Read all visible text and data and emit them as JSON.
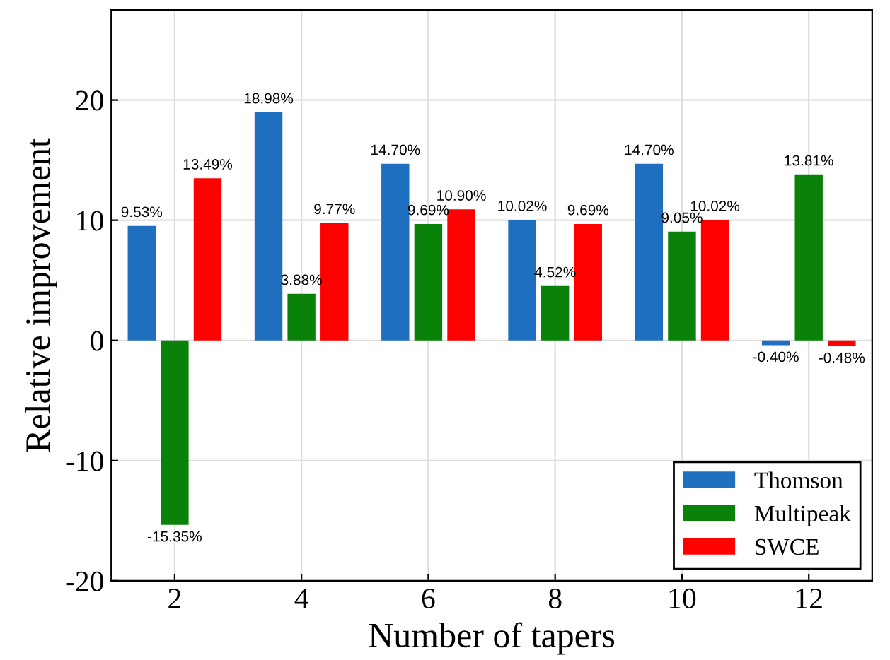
{
  "chart_data": {
    "type": "bar",
    "xlabel": "Number of tapers",
    "ylabel": "Relative improvement",
    "categories": [
      "2",
      "4",
      "6",
      "8",
      "10",
      "12"
    ],
    "series": [
      {
        "name": "Thomson",
        "color": "#1f6fc0",
        "values": [
          9.53,
          18.98,
          14.7,
          10.02,
          14.7,
          -0.4
        ],
        "value_labels": [
          "9.53%",
          "18.98%",
          "14.70%",
          "10.02%",
          "14.70%",
          "-0.40%"
        ]
      },
      {
        "name": "Multipeak",
        "color": "#0a820a",
        "values": [
          -15.35,
          3.88,
          9.69,
          4.52,
          9.05,
          13.81
        ],
        "value_labels": [
          "-15.35%",
          "3.88%",
          "9.69%",
          "4.52%",
          "9.05%",
          "13.81%"
        ]
      },
      {
        "name": "SWCE",
        "color": "#ff0000",
        "values": [
          13.49,
          9.77,
          10.9,
          9.69,
          10.02,
          -0.48
        ],
        "value_labels": [
          "13.49%",
          "9.77%",
          "10.90%",
          "9.69%",
          "10.02%",
          "-0.48%"
        ]
      }
    ],
    "ylim": [
      -20,
      27.5
    ],
    "yticks": [
      -20,
      -10,
      0,
      10,
      20
    ],
    "grid": true,
    "legend": "bottom right"
  }
}
